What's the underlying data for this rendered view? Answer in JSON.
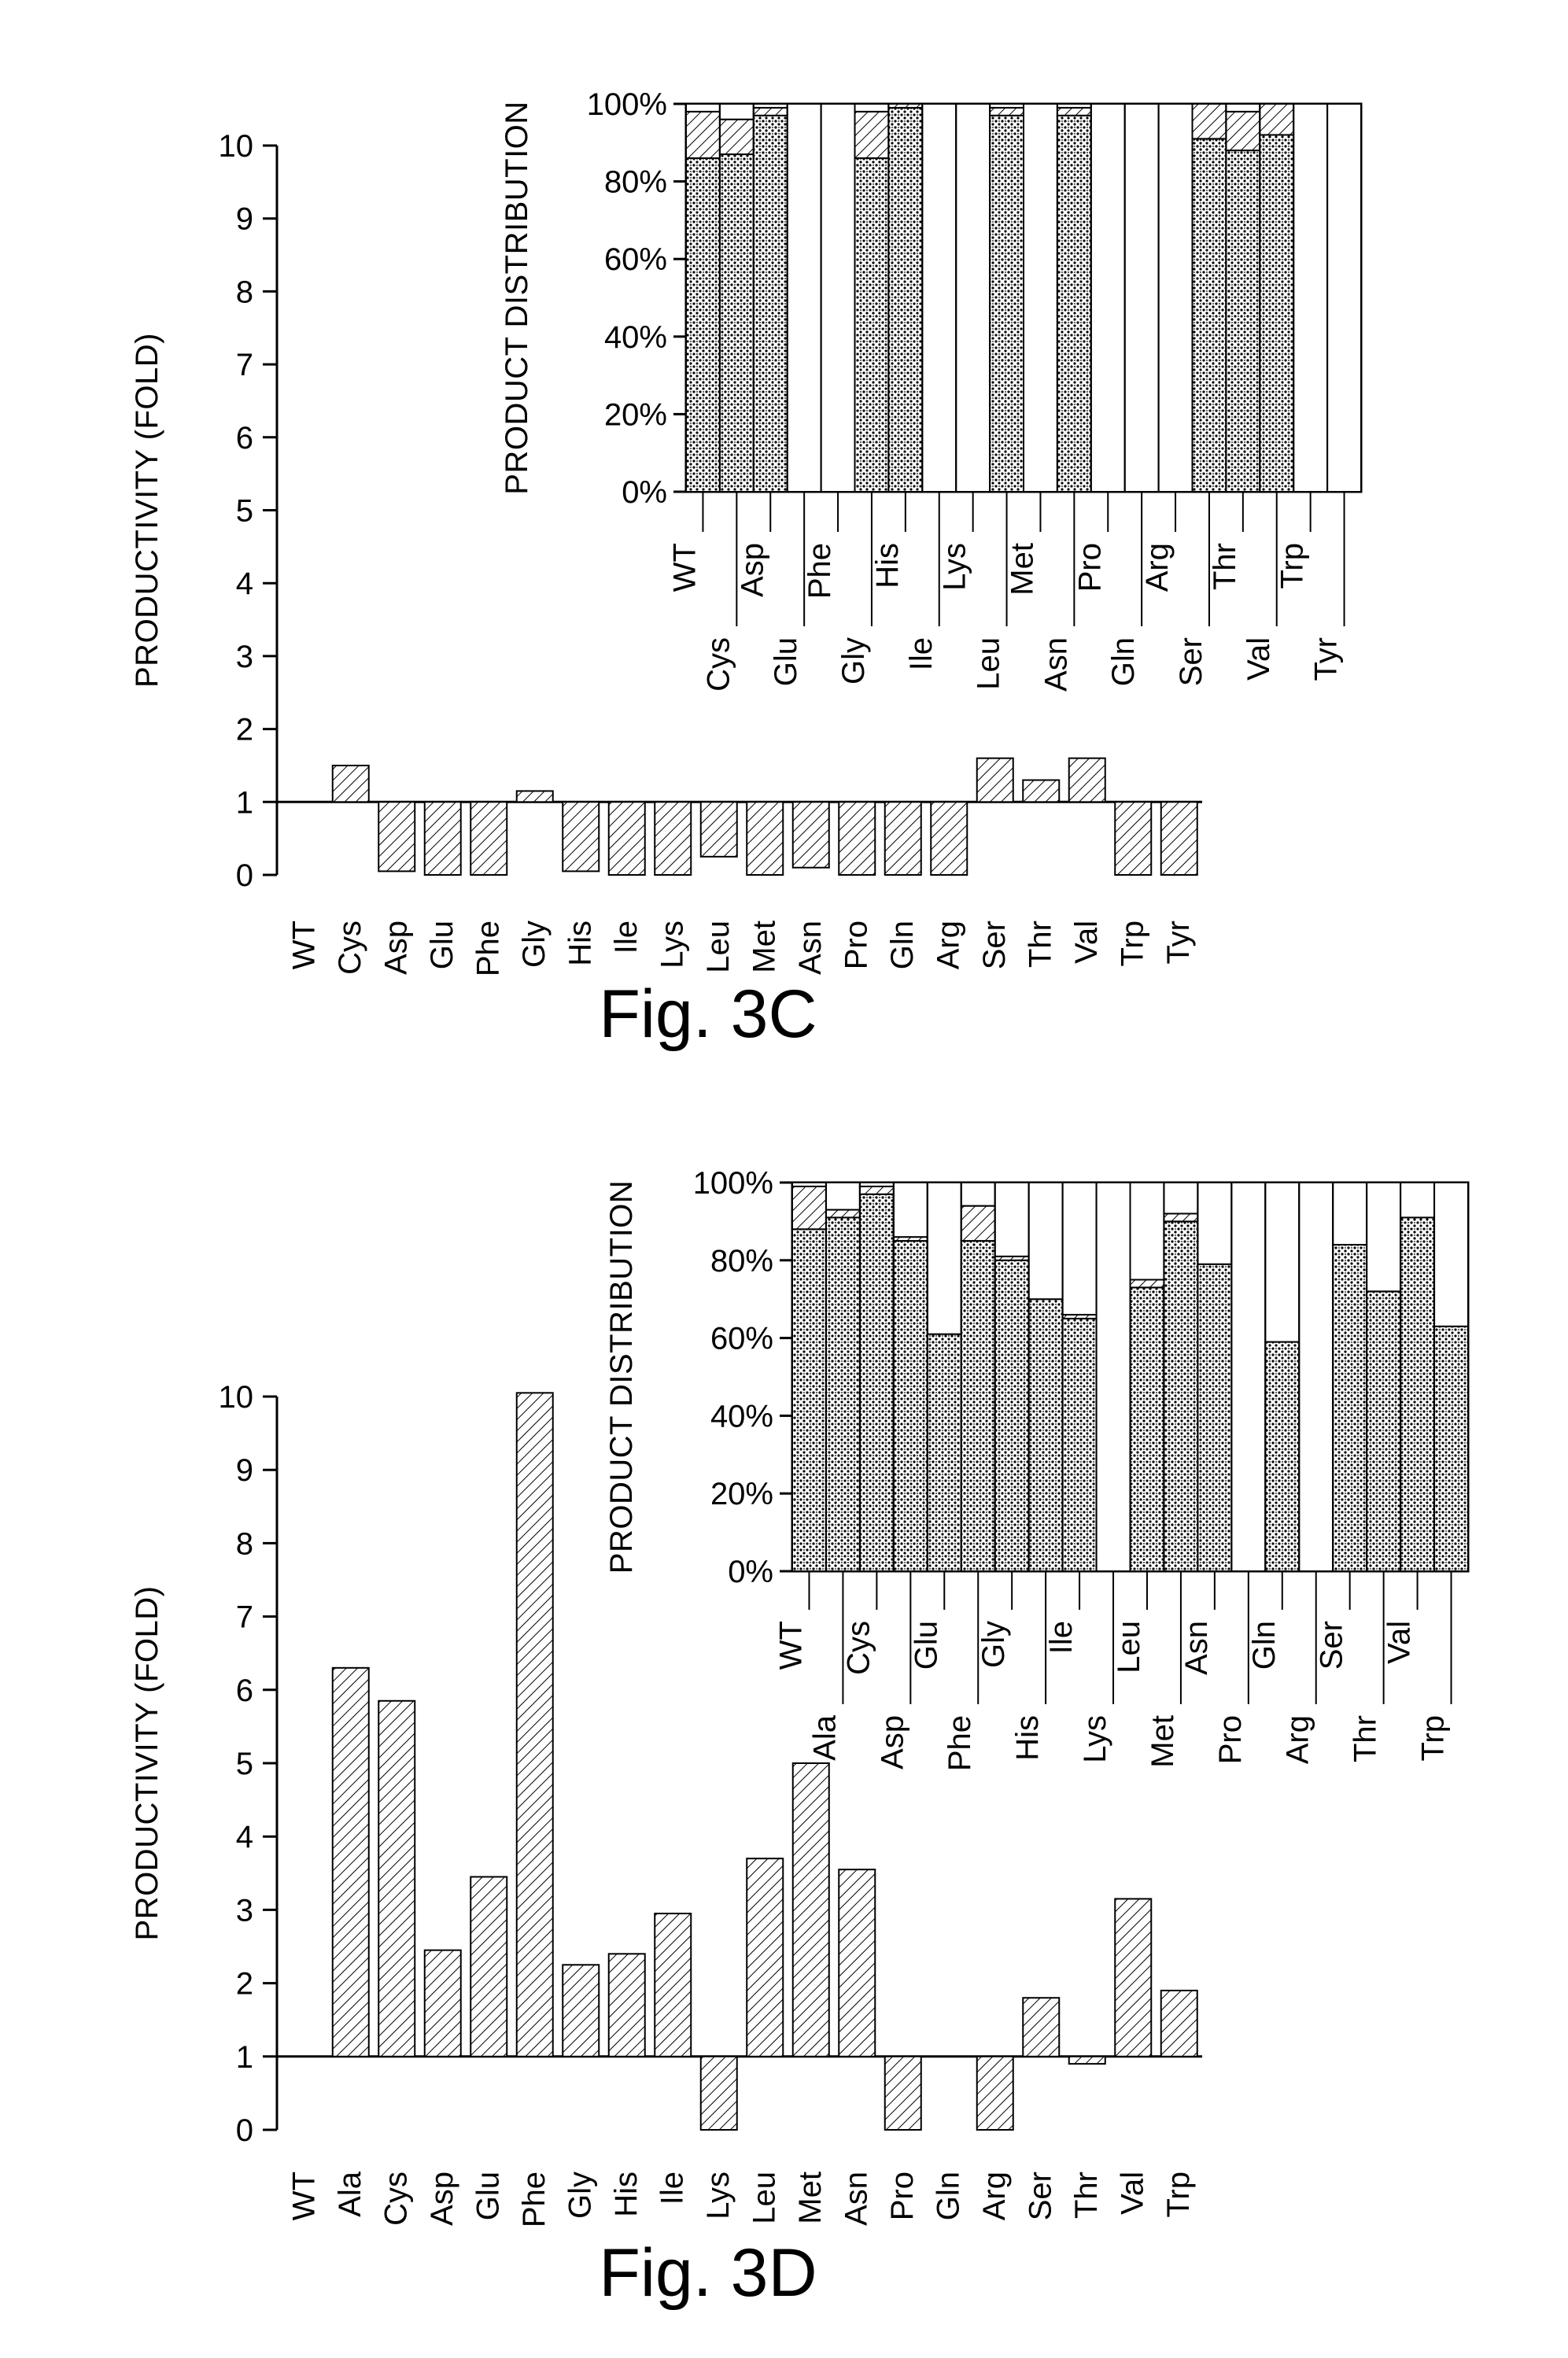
{
  "figures": [
    {
      "caption": "Fig. 3C"
    },
    {
      "caption": "Fig. 3D"
    }
  ],
  "colors": {
    "ink": "#000000",
    "background": "#ffffff"
  },
  "chart_data": [
    {
      "id": "fig3c-main",
      "type": "bar",
      "baseline": 1,
      "ylabel": "PRODUCTIVITY (FOLD)",
      "ylim": [
        0,
        10
      ],
      "yticks": [
        0,
        1,
        2,
        3,
        4,
        5,
        6,
        7,
        8,
        9,
        10
      ],
      "categories": [
        "WT",
        "Cys",
        "Asp",
        "Glu",
        "Phe",
        "Gly",
        "His",
        "Ile",
        "Lys",
        "Leu",
        "Met",
        "Asn",
        "Pro",
        "Gln",
        "Arg",
        "Ser",
        "Thr",
        "Val",
        "Trp",
        "Tyr"
      ],
      "values": [
        1,
        1.5,
        0.05,
        0,
        0,
        1.15,
        0.05,
        0,
        0,
        0.25,
        0,
        0.1,
        0,
        0,
        0,
        1.6,
        1.3,
        1.6,
        0,
        0
      ]
    },
    {
      "id": "fig3c-inset",
      "type": "stacked-bar",
      "ylabel": "PRODUCT DISTRIBUTION",
      "yticks": [
        "0%",
        "20%",
        "40%",
        "60%",
        "80%",
        "100%"
      ],
      "ylim": [
        0,
        100
      ],
      "categories": [
        "WT",
        "Cys",
        "Asp",
        "Glu",
        "Phe",
        "Gly",
        "His",
        "Ile",
        "Lys",
        "Leu",
        "Met",
        "Asn",
        "Pro",
        "Gln",
        "Arg",
        "Ser",
        "Thr",
        "Val",
        "Trp",
        "Tyr"
      ],
      "series": [
        {
          "pattern": "dotted",
          "values": [
            86,
            87,
            97,
            0,
            0,
            86,
            99,
            0,
            0,
            97,
            0,
            97,
            0,
            0,
            0,
            91,
            88,
            92,
            0,
            0
          ]
        },
        {
          "pattern": "hatched",
          "values": [
            12,
            9,
            2,
            0,
            0,
            12,
            1,
            0,
            0,
            2,
            0,
            2,
            0,
            0,
            0,
            9,
            10,
            8,
            0,
            0
          ]
        },
        {
          "pattern": "white",
          "values": [
            2,
            4,
            1,
            100,
            100,
            2,
            0,
            100,
            100,
            1,
            100,
            1,
            100,
            100,
            100,
            0,
            2,
            0,
            100,
            100
          ]
        }
      ]
    },
    {
      "id": "fig3d-main",
      "type": "bar",
      "baseline": 1,
      "ylabel": "PRODUCTIVITY (FOLD)",
      "ylim": [
        0,
        10
      ],
      "yticks": [
        0,
        1,
        2,
        3,
        4,
        5,
        6,
        7,
        8,
        9,
        10
      ],
      "categories": [
        "WT",
        "Ala",
        "Cys",
        "Asp",
        "Glu",
        "Phe",
        "Gly",
        "His",
        "Ile",
        "Lys",
        "Leu",
        "Met",
        "Asn",
        "Pro",
        "Gln",
        "Arg",
        "Ser",
        "Thr",
        "Val",
        "Trp"
      ],
      "values": [
        1,
        6.3,
        5.85,
        2.45,
        3.45,
        10.05,
        2.25,
        2.4,
        2.95,
        0,
        3.7,
        5.0,
        3.55,
        0,
        1,
        0,
        1.8,
        0.9,
        3.15,
        1.9
      ]
    },
    {
      "id": "fig3d-inset",
      "type": "stacked-bar",
      "ylabel": "PRODUCT DISTRIBUTION",
      "yticks": [
        "0%",
        "20%",
        "40%",
        "60%",
        "80%",
        "100%"
      ],
      "ylim": [
        0,
        100
      ],
      "categories": [
        "WT",
        "Ala",
        "Cys",
        "Asp",
        "Glu",
        "Phe",
        "Gly",
        "His",
        "Ile",
        "Lys",
        "Leu",
        "Met",
        "Asn",
        "Pro",
        "Gln",
        "Arg",
        "Ser",
        "Thr",
        "Val",
        "Trp"
      ],
      "series": [
        {
          "pattern": "dotted",
          "values": [
            88,
            91,
            97,
            85,
            61,
            85,
            80,
            70,
            65,
            0,
            73,
            90,
            79,
            0,
            59,
            0,
            84,
            72,
            91,
            63
          ]
        },
        {
          "pattern": "hatched",
          "values": [
            11,
            2,
            2,
            1,
            0,
            9,
            1,
            0,
            1,
            0,
            2,
            2,
            0,
            0,
            0,
            0,
            0,
            0,
            0,
            0
          ]
        },
        {
          "pattern": "white",
          "values": [
            1,
            7,
            1,
            14,
            39,
            6,
            19,
            30,
            34,
            100,
            25,
            8,
            21,
            100,
            41,
            100,
            16,
            28,
            9,
            37
          ]
        }
      ]
    }
  ]
}
